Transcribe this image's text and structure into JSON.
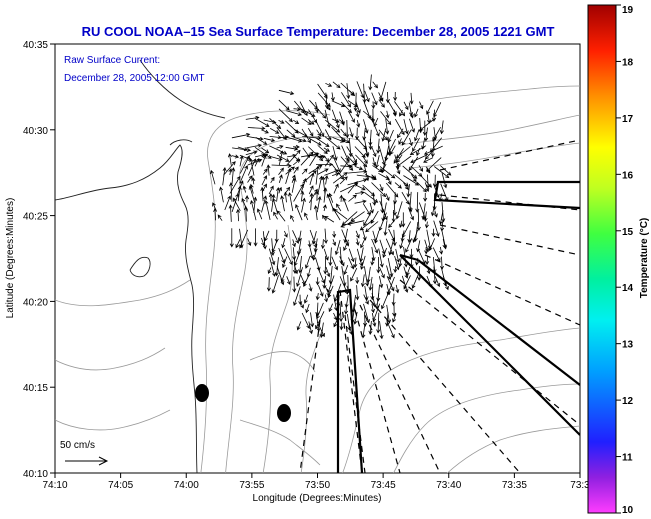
{
  "title": "RU COOL   NOAA–15  Sea Surface Temperature:  December 28, 2005 1221 GMT",
  "annotation": {
    "line1": "Raw Surface Current:",
    "line2": "December 28, 2005 12:00 GMT"
  },
  "scale": {
    "label": "50 cm/s"
  },
  "axes": {
    "xlabel": "Longitude (Degrees:Minutes)",
    "ylabel": "Latitude (Degrees:Minutes)",
    "x_ticks": [
      "74:10",
      "74:05",
      "74:00",
      "73:55",
      "73:50",
      "73:45",
      "73:40",
      "73:35",
      "73:3"
    ],
    "y_ticks": [
      "40:35",
      "40:30",
      "40:25",
      "40:20",
      "40:15",
      "40:10"
    ]
  },
  "colorbar": {
    "label": "Temperature (°C)",
    "ticks": [
      "19",
      "18",
      "17",
      "16",
      "15",
      "14",
      "13",
      "12",
      "11",
      "10"
    ],
    "min": 10,
    "max": 19
  },
  "colors": {
    "title": "#0000c8",
    "annotation": "#0000c8"
  }
}
